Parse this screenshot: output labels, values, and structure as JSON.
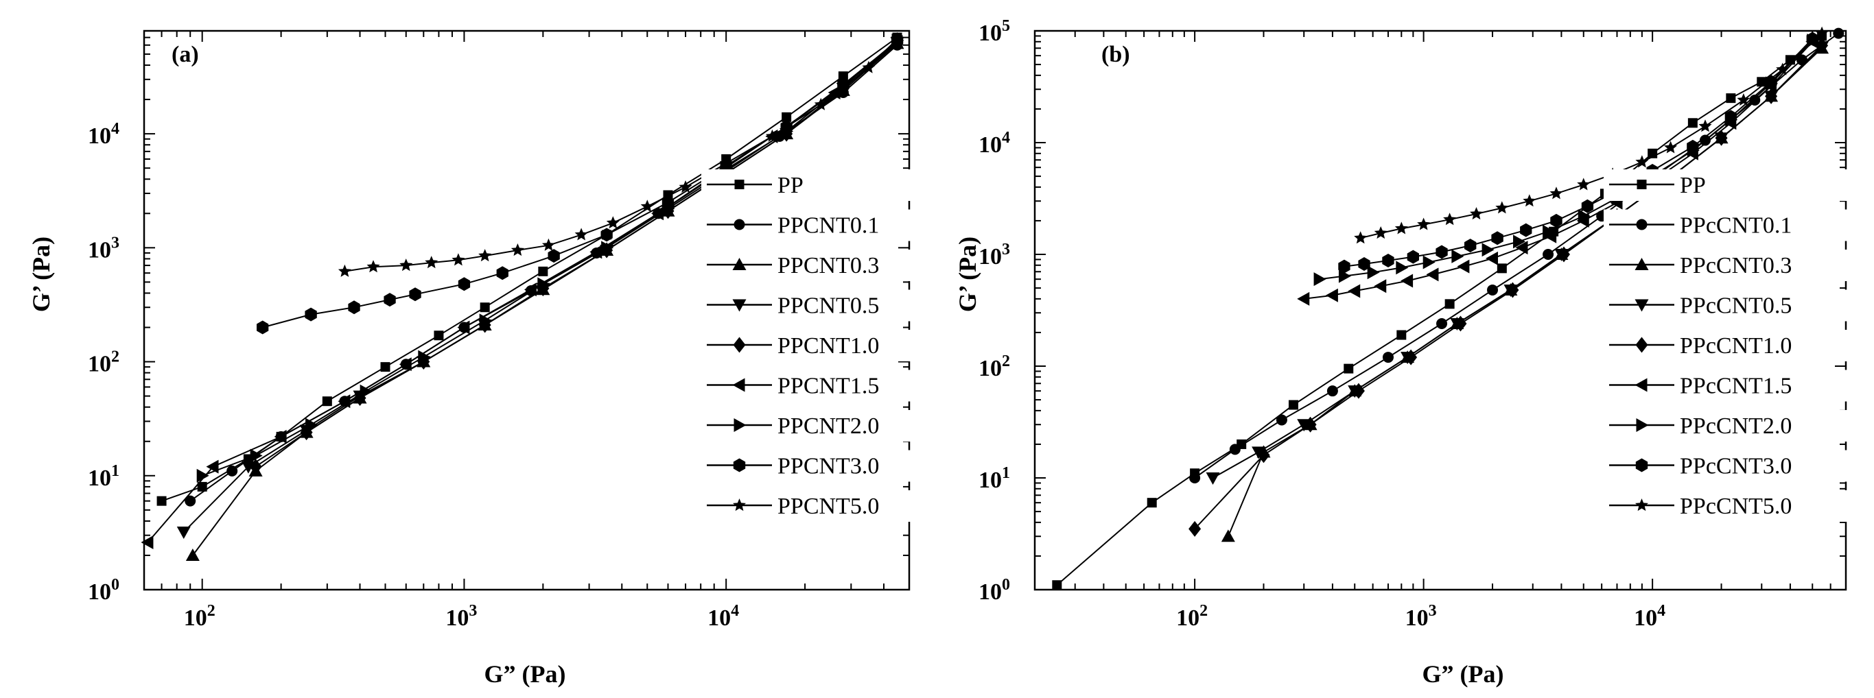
{
  "colors": {
    "ink": "#000000",
    "background": "#ffffff"
  },
  "chart_data": [
    {
      "type": "scatter",
      "panel_label": "(a)",
      "xlabel": "G” (Pa)",
      "ylabel": "G’ (Pa)",
      "xscale": "log",
      "yscale": "log",
      "xlim": [
        60,
        50000
      ],
      "ylim": [
        1,
        80000
      ],
      "x_tick_labels": [
        {
          "v": 100,
          "base": "10",
          "exp": "2"
        },
        {
          "v": 1000,
          "base": "10",
          "exp": "3"
        },
        {
          "v": 10000,
          "base": "10",
          "exp": "4"
        }
      ],
      "y_tick_labels": [
        {
          "v": 1,
          "base": "10",
          "exp": "0"
        },
        {
          "v": 10,
          "base": "10",
          "exp": "1"
        },
        {
          "v": 100,
          "base": "10",
          "exp": "2"
        },
        {
          "v": 1000,
          "base": "10",
          "exp": "3"
        },
        {
          "v": 10000,
          "base": "10",
          "exp": "4"
        }
      ],
      "grid": false,
      "legend_position": "right",
      "series": [
        {
          "name": "PP",
          "marker": "square",
          "x": [
            70,
            100,
            150,
            200,
            300,
            500,
            800,
            1200,
            2000,
            3500,
            6000,
            10000,
            17000,
            28000,
            45000
          ],
          "y": [
            6,
            8,
            14,
            22,
            45,
            90,
            170,
            300,
            620,
            1300,
            2900,
            6000,
            14000,
            32000,
            70000
          ]
        },
        {
          "name": "PPCNT0.1",
          "marker": "circle",
          "x": [
            90,
            130,
            200,
            350,
            600,
            1000,
            1800,
            3200,
            5500,
            9000,
            16000,
            28000,
            45000
          ],
          "y": [
            6,
            11,
            22,
            45,
            95,
            200,
            420,
            900,
            2000,
            4200,
            9500,
            23000,
            60000
          ]
        },
        {
          "name": "PPCNT0.3",
          "marker": "triangle-up",
          "x": [
            92,
            160,
            250,
            400,
            700,
            1200,
            2000,
            3500,
            6000,
            10000,
            17000,
            28000,
            45000
          ],
          "y": [
            2,
            11,
            24,
            48,
            100,
            210,
            430,
            950,
            2100,
            4500,
            10000,
            24000,
            62000
          ]
        },
        {
          "name": "PPCNT0.5",
          "marker": "triangle-down",
          "x": [
            85,
            150,
            250,
            400,
            700,
            1200,
            2000,
            3500,
            6000,
            10000,
            17000,
            28000,
            45000
          ],
          "y": [
            3.2,
            12,
            25,
            50,
            100,
            210,
            440,
            950,
            2100,
            4500,
            10000,
            25000,
            63000
          ]
        },
        {
          "name": "PPCNT1.0",
          "marker": "diamond",
          "x": [
            160,
            250,
            400,
            700,
            1200,
            2000,
            3500,
            6000,
            10000,
            17000,
            28000,
            45000
          ],
          "y": [
            12,
            24,
            48,
            100,
            210,
            440,
            950,
            2100,
            4500,
            10000,
            25000,
            64000
          ]
        },
        {
          "name": "PPCNT1.5",
          "marker": "triangle-left",
          "x": [
            62,
            110,
            200,
            350,
            600,
            1000,
            1800,
            3200,
            5500,
            9000,
            15000,
            26000,
            45000
          ],
          "y": [
            2.6,
            12,
            22,
            45,
            95,
            200,
            430,
            920,
            2000,
            4300,
            9500,
            23000,
            64000
          ]
        },
        {
          "name": "PPCNT2.0",
          "marker": "triangle-right",
          "x": [
            100,
            160,
            260,
            420,
            700,
            1200,
            2000,
            3500,
            6000,
            10000,
            17000,
            28000,
            45000
          ],
          "y": [
            10,
            15,
            28,
            55,
            110,
            230,
            480,
            1000,
            2200,
            4700,
            10500,
            26000,
            66000
          ]
        },
        {
          "name": "PPCNT3.0",
          "marker": "hexagon",
          "x": [
            170,
            260,
            380,
            520,
            650,
            1000,
            1400,
            2200,
            3500,
            6000,
            10000,
            17000,
            28000,
            45000
          ],
          "y": [
            200,
            260,
            300,
            350,
            390,
            480,
            600,
            850,
            1300,
            2500,
            5200,
            11500,
            27000,
            65000
          ]
        },
        {
          "name": "PPCNT5.0",
          "marker": "star",
          "x": [
            350,
            450,
            600,
            750,
            950,
            1200,
            1600,
            2100,
            2800,
            3700,
            5000,
            7000,
            10000,
            15000,
            23000,
            35000,
            45000
          ],
          "y": [
            620,
            680,
            700,
            740,
            780,
            850,
            950,
            1050,
            1300,
            1650,
            2300,
            3400,
            5500,
            9500,
            18000,
            38000,
            68000
          ]
        }
      ]
    },
    {
      "type": "scatter",
      "panel_label": "(b)",
      "xlabel": "G” (Pa)",
      "ylabel": "G’ (Pa)",
      "xscale": "log",
      "yscale": "log",
      "xlim": [
        20,
        70000
      ],
      "ylim": [
        1,
        100000
      ],
      "x_tick_labels": [
        {
          "v": 100,
          "base": "10",
          "exp": "2"
        },
        {
          "v": 1000,
          "base": "10",
          "exp": "3"
        },
        {
          "v": 10000,
          "base": "10",
          "exp": "4"
        }
      ],
      "y_tick_labels": [
        {
          "v": 1,
          "base": "10",
          "exp": "0"
        },
        {
          "v": 10,
          "base": "10",
          "exp": "1"
        },
        {
          "v": 100,
          "base": "10",
          "exp": "2"
        },
        {
          "v": 1000,
          "base": "10",
          "exp": "3"
        },
        {
          "v": 10000,
          "base": "10",
          "exp": "4"
        },
        {
          "v": 100000,
          "base": "10",
          "exp": "5"
        }
      ],
      "grid": false,
      "legend_position": "right",
      "series": [
        {
          "name": "PP",
          "marker": "square",
          "x": [
            25,
            65,
            100,
            160,
            270,
            470,
            800,
            1300,
            2200,
            3700,
            6200,
            10000,
            15000,
            22000,
            30000,
            40000,
            55000
          ],
          "y": [
            1.1,
            6,
            11,
            20,
            45,
            95,
            190,
            360,
            750,
            1600,
            3500,
            8000,
            15000,
            25000,
            35000,
            55000,
            90000
          ]
        },
        {
          "name": "PPcCNT0.1",
          "marker": "circle",
          "x": [
            100,
            150,
            240,
            400,
            700,
            1200,
            2000,
            3500,
            6000,
            10000,
            17000,
            28000,
            45000,
            65000
          ],
          "y": [
            10,
            18,
            33,
            60,
            120,
            240,
            480,
            1000,
            2200,
            4800,
            10500,
            24000,
            55000,
            95000
          ]
        },
        {
          "name": "PPcCNT0.3",
          "marker": "triangle-up",
          "x": [
            140,
            200,
            320,
            500,
            850,
            1400,
            2400,
            4000,
            7000,
            12000,
            20000,
            33000,
            55000
          ],
          "y": [
            3,
            17,
            30,
            60,
            120,
            240,
            480,
            1000,
            2200,
            4900,
            11000,
            26000,
            70000
          ]
        },
        {
          "name": "PPcCNT0.5",
          "marker": "triangle-down",
          "x": [
            120,
            190,
            300,
            500,
            850,
            1400,
            2400,
            4000,
            7000,
            12000,
            20000,
            33000,
            55000
          ],
          "y": [
            10,
            17,
            30,
            60,
            120,
            240,
            480,
            1000,
            2200,
            4900,
            11000,
            26000,
            72000
          ]
        },
        {
          "name": "PPcCNT1.0",
          "marker": "diamond",
          "x": [
            100,
            200,
            320,
            520,
            880,
            1450,
            2450,
            4100,
            7000,
            12000,
            20000,
            33000,
            55000
          ],
          "y": [
            3.5,
            16,
            30,
            60,
            120,
            240,
            480,
            1000,
            2200,
            4900,
            11000,
            26000,
            74000
          ]
        },
        {
          "name": "PPcCNT1.5",
          "marker": "triangle-left",
          "x": [
            300,
            400,
            500,
            650,
            850,
            1100,
            1500,
            2000,
            2700,
            3600,
            5000,
            7000,
            10000,
            15000,
            22000,
            33000,
            50000
          ],
          "y": [
            400,
            430,
            470,
            520,
            580,
            660,
            780,
            920,
            1150,
            1450,
            2000,
            2900,
            4500,
            8000,
            15000,
            32000,
            80000
          ]
        },
        {
          "name": "PPcCNT2.0",
          "marker": "triangle-right",
          "x": [
            350,
            450,
            600,
            800,
            1050,
            1400,
            1900,
            2600,
            3500,
            5000,
            7000,
            10000,
            15000,
            22000,
            33000,
            50000
          ],
          "y": [
            600,
            640,
            690,
            760,
            850,
            960,
            1100,
            1300,
            1600,
            2200,
            3200,
            5000,
            8500,
            16000,
            34000,
            82000
          ]
        },
        {
          "name": "PPcCNT3.0",
          "marker": "hexagon",
          "x": [
            450,
            550,
            700,
            900,
            1200,
            1600,
            2100,
            2800,
            3800,
            5200,
            7200,
            10000,
            15000,
            22000,
            33000,
            50000
          ],
          "y": [
            780,
            820,
            880,
            950,
            1050,
            1200,
            1400,
            1650,
            2000,
            2700,
            3800,
            5600,
            9200,
            17000,
            35000,
            85000
          ]
        },
        {
          "name": "PPcCNT5.0",
          "marker": "star",
          "x": [
            530,
            650,
            800,
            1000,
            1300,
            1700,
            2200,
            2900,
            3800,
            5000,
            6700,
            9000,
            12000,
            17000,
            25000,
            37000,
            55000
          ],
          "y": [
            1400,
            1550,
            1700,
            1850,
            2050,
            2300,
            2600,
            3000,
            3500,
            4200,
            5200,
            6700,
            9000,
            14000,
            24000,
            45000,
            95000
          ]
        }
      ]
    }
  ]
}
